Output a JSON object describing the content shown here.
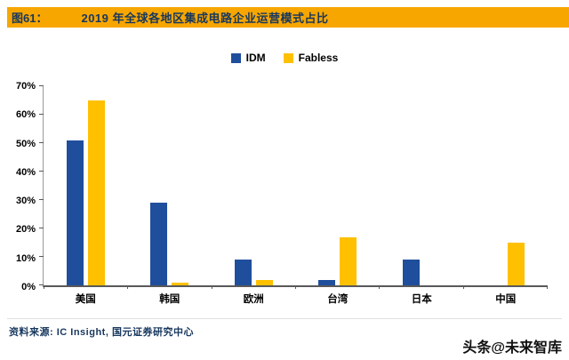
{
  "header": {
    "fig_label": "图61：",
    "title": "2019 年全球各地区集成电路企业运营模式占比",
    "bar_color": "#F7A600",
    "text_color": "#17375E"
  },
  "chart_data": {
    "type": "bar",
    "title": "2019 年全球各地区集成电路企业运营模式占比",
    "categories": [
      "美国",
      "韩国",
      "欧洲",
      "台湾",
      "日本",
      "中国"
    ],
    "series": [
      {
        "name": "IDM",
        "color": "#1F4E9C",
        "values": [
          51,
          29,
          9,
          2,
          9,
          0
        ]
      },
      {
        "name": "Fabless",
        "color": "#FFC000",
        "values": [
          65,
          1,
          2,
          17,
          0,
          15
        ]
      }
    ],
    "xlabel": "",
    "ylabel": "",
    "ylim": [
      0,
      70
    ],
    "ytick_step": 10,
    "ytick_labels": [
      "0%",
      "10%",
      "20%",
      "30%",
      "40%",
      "50%",
      "60%",
      "70%"
    ],
    "legend_position": "top-center",
    "grid": false
  },
  "footer": {
    "source": "资料来源: IC Insight, 国元证券研究中心",
    "watermark": "头条@未来智库"
  }
}
